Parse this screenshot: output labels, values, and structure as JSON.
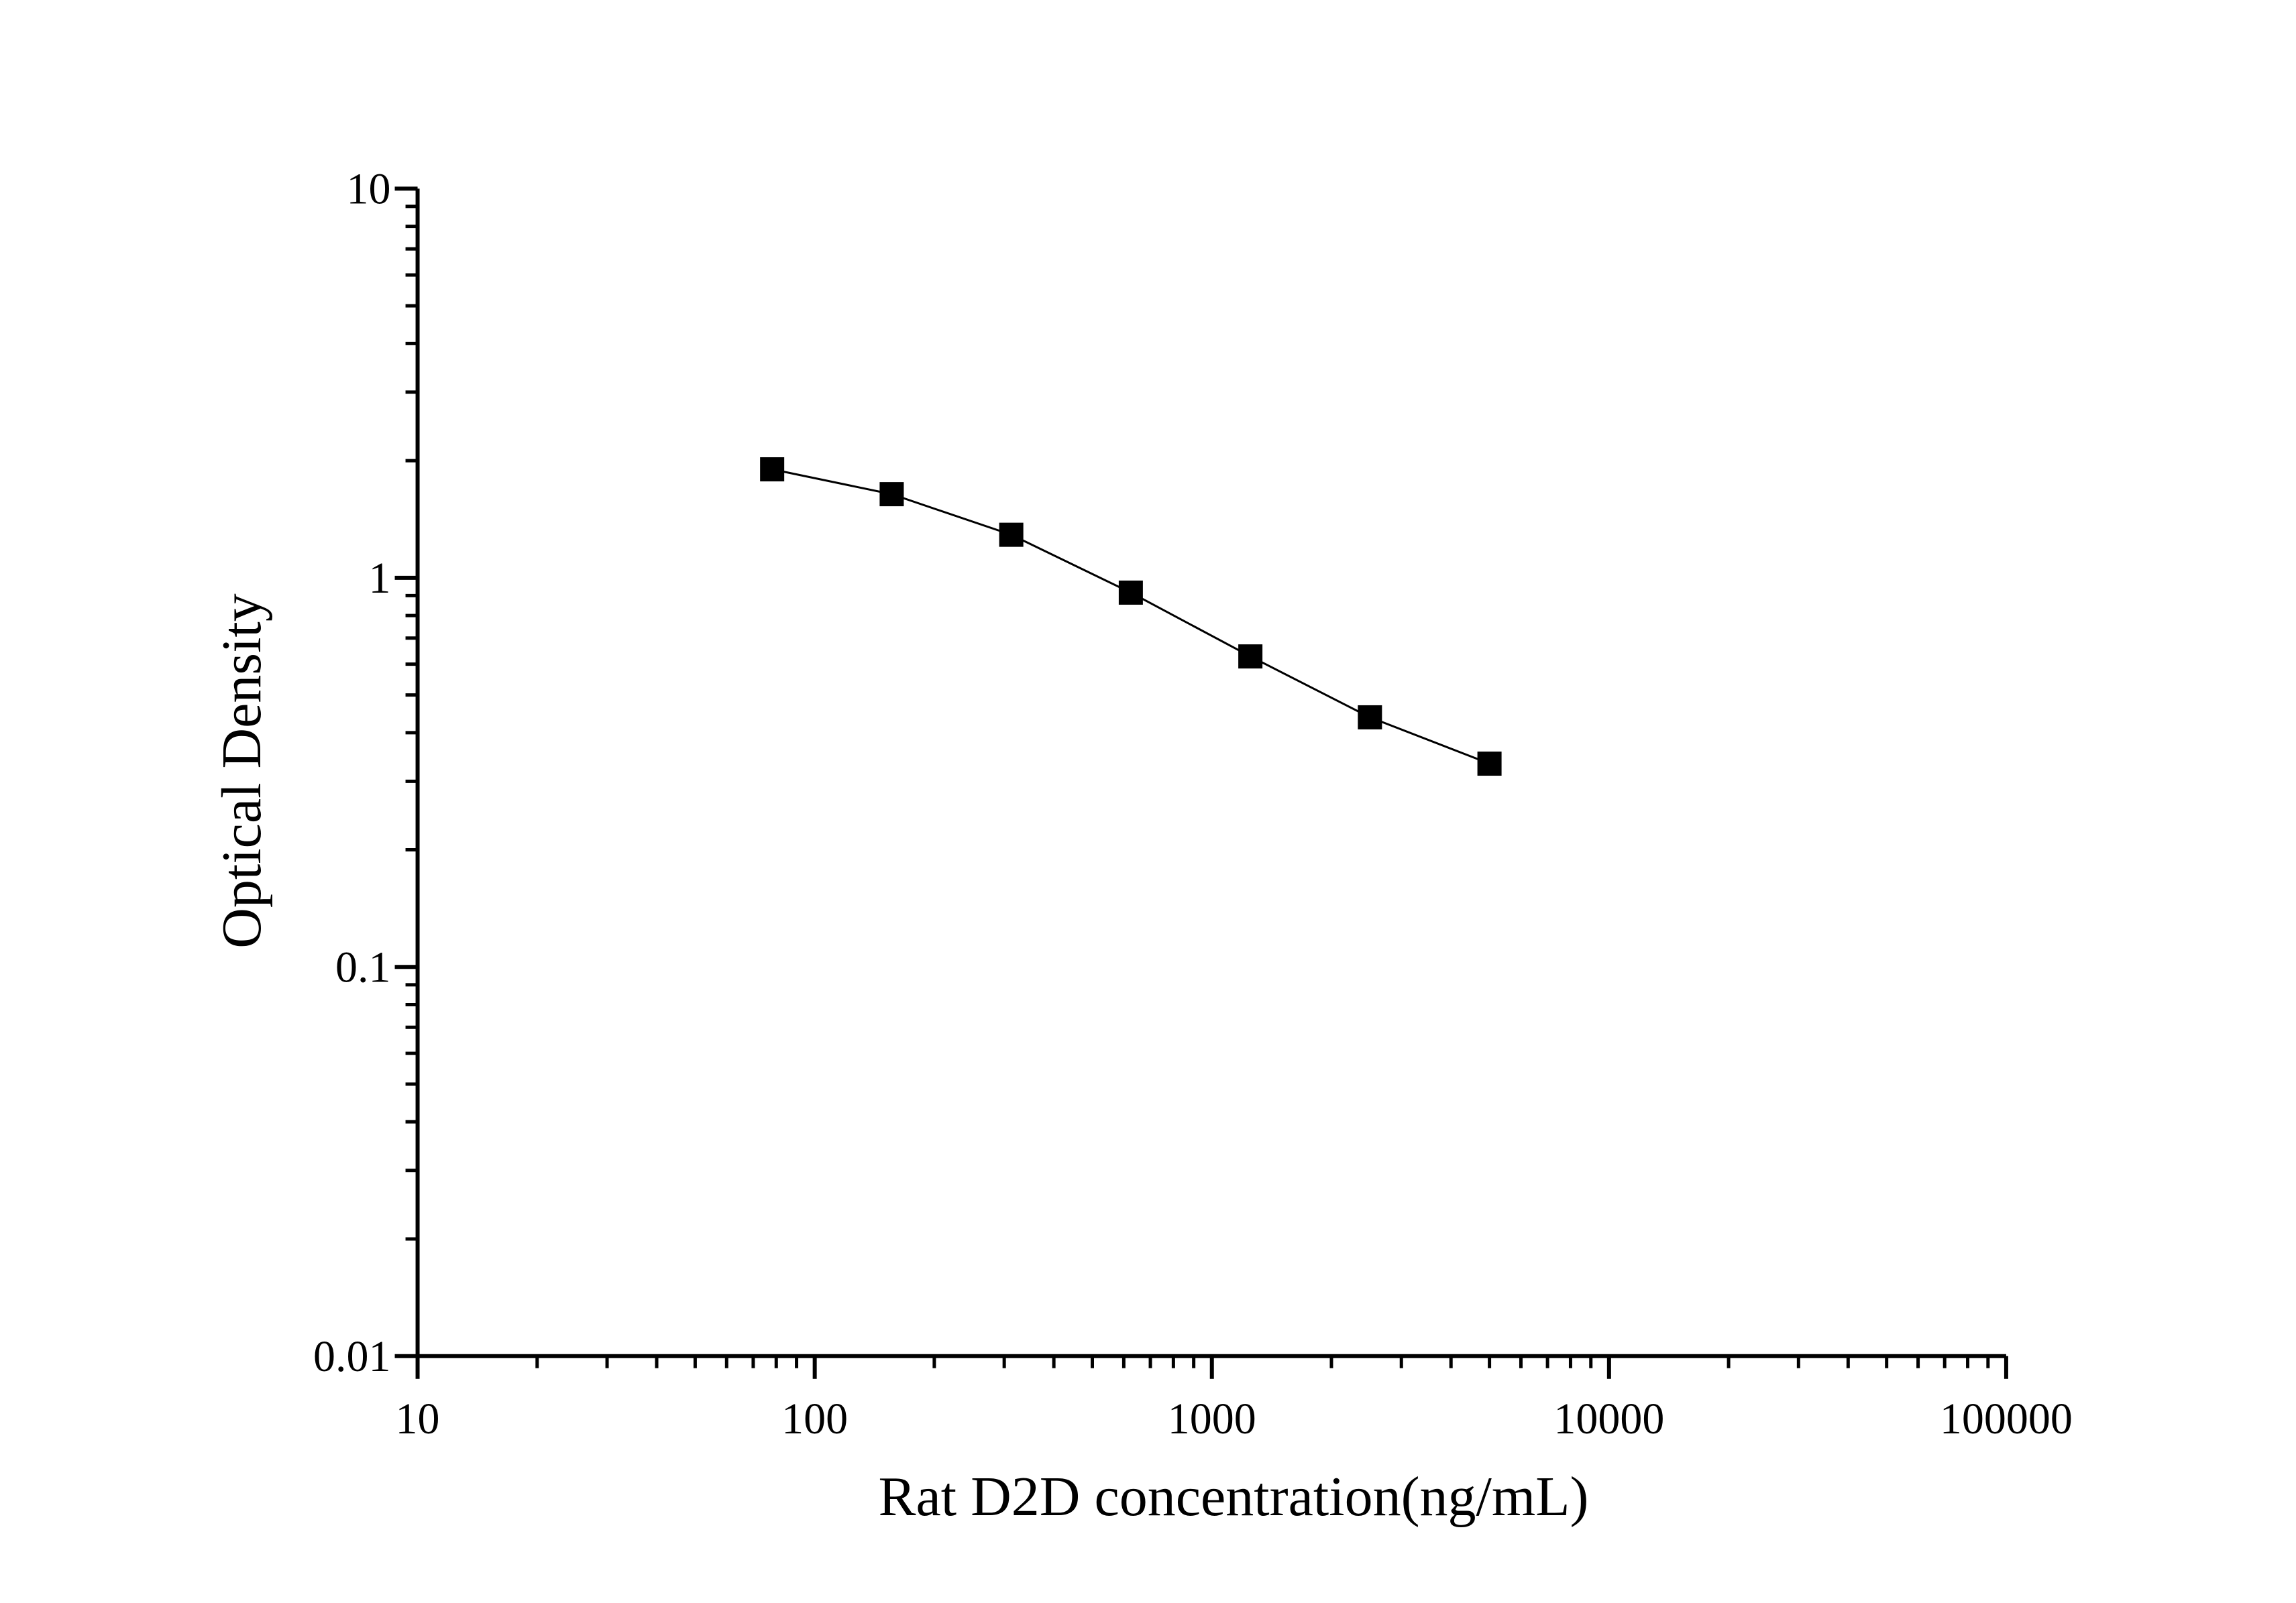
{
  "chart_data": {
    "type": "line",
    "x_label": "Rat D2D concentration(ng/mL)",
    "y_label": "Optical Density",
    "x": [
      78.125,
      156.25,
      312.5,
      625,
      1250,
      2500,
      5000
    ],
    "series": [
      {
        "color": "#000000",
        "values": [
          1.9,
          1.64,
          1.29,
          0.916,
          0.628,
          0.438,
          0.333
        ]
      }
    ],
    "xlim": [
      10,
      100000
    ],
    "xticks": [
      10,
      100,
      1000,
      10000,
      100000
    ],
    "ylim": [
      0.01,
      10
    ],
    "yticks": [
      0.01,
      0.1,
      1,
      10
    ],
    "x_scale": "log",
    "y_scale": "log",
    "marker": "square",
    "grid": false
  }
}
